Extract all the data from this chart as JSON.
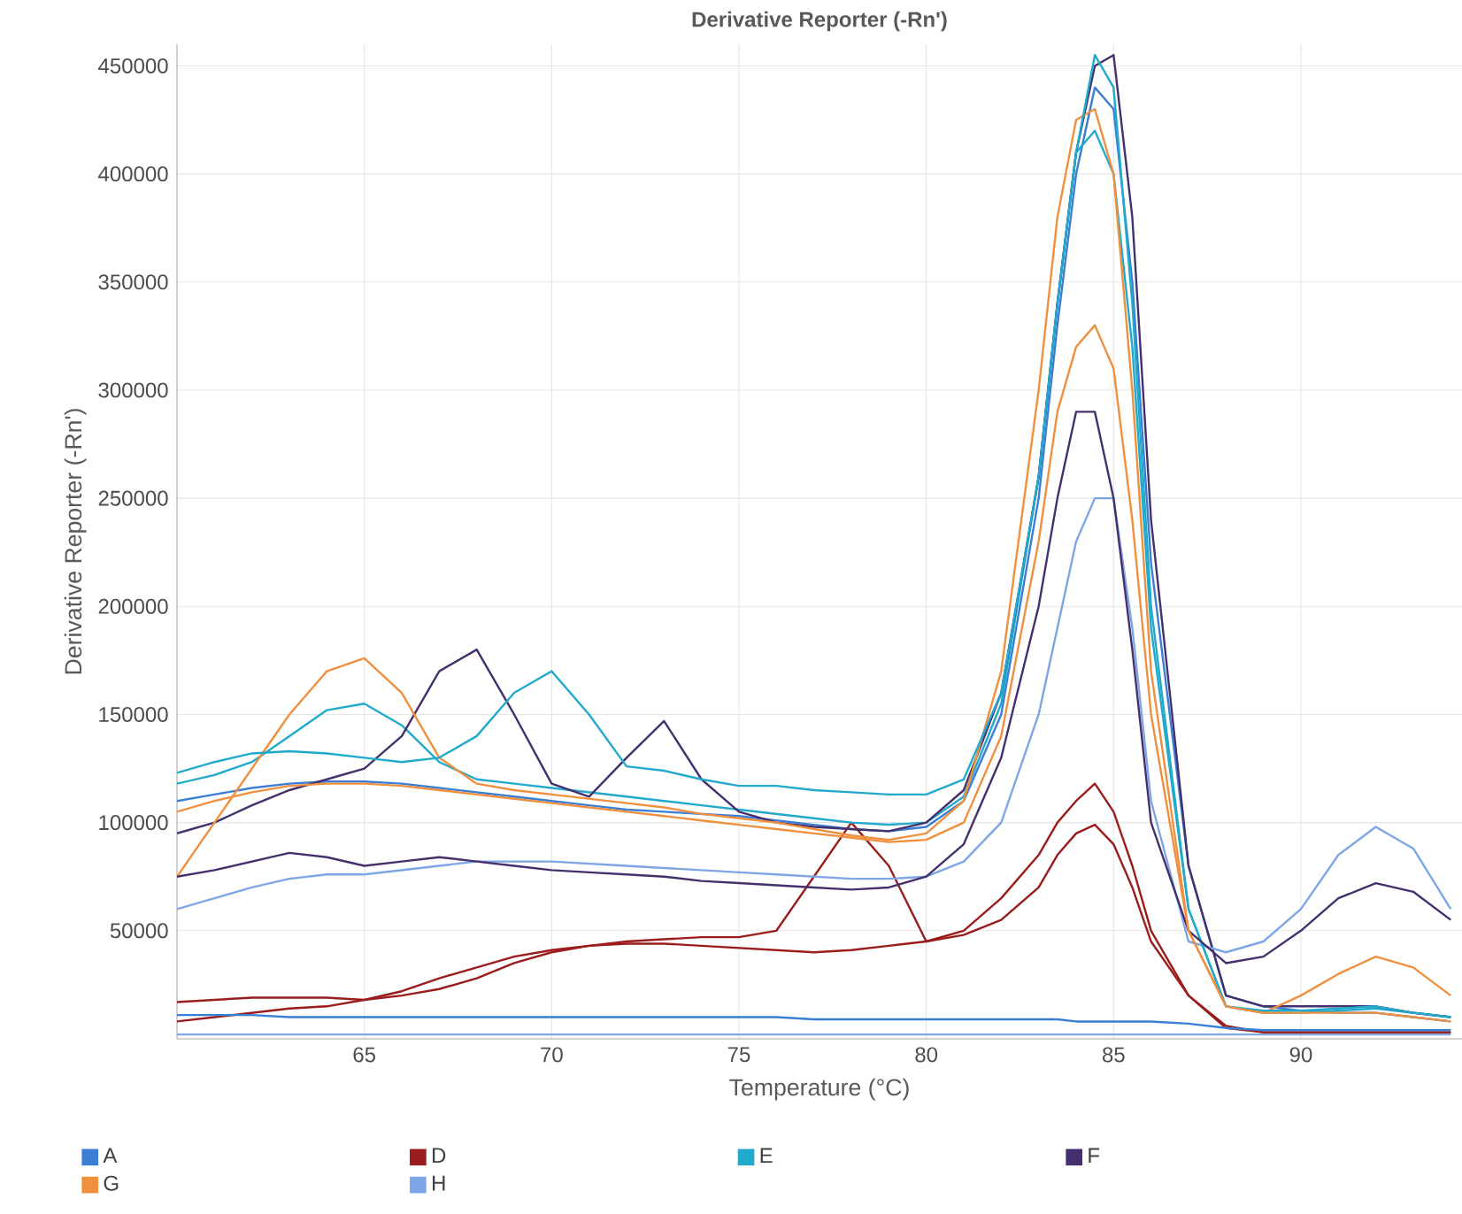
{
  "chart_data": {
    "type": "line",
    "title": "Derivative Reporter (-Rn')",
    "xlabel": "Temperature (°C)",
    "ylabel": "Derivative Reporter (-Rn')",
    "x": [
      60,
      61,
      62,
      63,
      64,
      65,
      66,
      67,
      68,
      69,
      70,
      71,
      72,
      73,
      74,
      75,
      76,
      77,
      78,
      79,
      80,
      81,
      82,
      83,
      83.5,
      84,
      84.5,
      85,
      85.5,
      86,
      87,
      88,
      89,
      90,
      91,
      92,
      93,
      94
    ],
    "xlim": [
      60,
      94.3
    ],
    "ylim": [
      0,
      460000
    ],
    "xticks": [
      65,
      70,
      75,
      80,
      85,
      90
    ],
    "yticks": [
      50000,
      100000,
      150000,
      200000,
      250000,
      300000,
      350000,
      400000,
      450000
    ],
    "grid": true,
    "legend": "bottom",
    "series": [
      {
        "name": "A",
        "color": "#3a7fd5",
        "values": [
          110000,
          113000,
          116000,
          118000,
          119000,
          119000,
          118000,
          116000,
          114000,
          112000,
          110000,
          108000,
          106000,
          105000,
          104000,
          103000,
          101000,
          99000,
          97000,
          96000,
          98000,
          110000,
          150000,
          250000,
          330000,
          400000,
          440000,
          430000,
          350000,
          220000,
          80000,
          20000,
          15000,
          13000,
          12000,
          12000,
          10000,
          8000
        ]
      },
      {
        "name": "D",
        "color": "#9b1c1c",
        "values": [
          17000,
          18000,
          19000,
          19000,
          19000,
          18000,
          20000,
          23000,
          28000,
          35000,
          40000,
          43000,
          45000,
          46000,
          47000,
          47000,
          50000,
          75000,
          100000,
          80000,
          45000,
          50000,
          65000,
          85000,
          100000,
          110000,
          118000,
          105000,
          80000,
          50000,
          20000,
          5000,
          3000,
          3000,
          3000,
          3000,
          3000,
          3000
        ]
      },
      {
        "name": "E",
        "color": "#22aacc",
        "values": [
          118000,
          122000,
          128000,
          140000,
          152000,
          155000,
          145000,
          128000,
          120000,
          118000,
          116000,
          114000,
          112000,
          110000,
          108000,
          106000,
          104000,
          102000,
          100000,
          99000,
          100000,
          112000,
          155000,
          260000,
          340000,
          410000,
          420000,
          400000,
          320000,
          190000,
          60000,
          15000,
          12000,
          12000,
          13000,
          14000,
          12000,
          10000
        ]
      },
      {
        "name": "F",
        "color": "#45306e",
        "values": [
          95000,
          100000,
          108000,
          115000,
          120000,
          125000,
          140000,
          170000,
          180000,
          150000,
          118000,
          112000,
          130000,
          147000,
          120000,
          105000,
          100000,
          98000,
          97000,
          96000,
          100000,
          115000,
          160000,
          260000,
          340000,
          410000,
          450000,
          455000,
          380000,
          240000,
          80000,
          20000,
          15000,
          15000,
          15000,
          15000,
          12000,
          10000
        ]
      },
      {
        "name": "G",
        "color": "#f0903f",
        "values": [
          75000,
          100000,
          125000,
          150000,
          170000,
          176000,
          160000,
          130000,
          118000,
          115000,
          113000,
          111000,
          109000,
          107000,
          104000,
          102000,
          100000,
          97000,
          94000,
          92000,
          95000,
          110000,
          170000,
          300000,
          380000,
          425000,
          430000,
          400000,
          300000,
          170000,
          50000,
          15000,
          12000,
          20000,
          30000,
          38000,
          33000,
          20000
        ]
      },
      {
        "name": "H",
        "color": "#7ea6e6",
        "values": [
          60000,
          65000,
          70000,
          74000,
          76000,
          76000,
          78000,
          80000,
          82000,
          82000,
          82000,
          81000,
          80000,
          79000,
          78000,
          77000,
          76000,
          75000,
          74000,
          74000,
          75000,
          82000,
          100000,
          150000,
          190000,
          230000,
          250000,
          250000,
          190000,
          110000,
          45000,
          40000,
          45000,
          60000,
          85000,
          98000,
          88000,
          60000
        ]
      },
      {
        "color": "#22aacc",
        "values": [
          123000,
          128000,
          132000,
          133000,
          132000,
          130000,
          128000,
          130000,
          140000,
          160000,
          170000,
          150000,
          126000,
          124000,
          120000,
          117000,
          117000,
          115000,
          114000,
          113000,
          113000,
          120000,
          160000,
          260000,
          340000,
          410000,
          455000,
          440000,
          340000,
          200000,
          60000,
          15000,
          13000,
          13000,
          14000,
          15000,
          12000,
          10000
        ]
      },
      {
        "color": "#9b1c1c",
        "values": [
          8000,
          10000,
          12000,
          14000,
          15000,
          18000,
          22000,
          28000,
          33000,
          38000,
          41000,
          43000,
          44000,
          44000,
          43000,
          42000,
          41000,
          40000,
          41000,
          43000,
          45000,
          48000,
          55000,
          70000,
          85000,
          95000,
          99000,
          90000,
          70000,
          45000,
          20000,
          6000,
          3000,
          3000,
          3000,
          3000,
          3000,
          3000
        ]
      },
      {
        "color": "#45306e",
        "values": [
          75000,
          78000,
          82000,
          86000,
          84000,
          80000,
          82000,
          84000,
          82000,
          80000,
          78000,
          77000,
          76000,
          75000,
          73000,
          72000,
          71000,
          70000,
          69000,
          70000,
          75000,
          90000,
          130000,
          200000,
          250000,
          290000,
          290000,
          250000,
          180000,
          100000,
          50000,
          35000,
          38000,
          50000,
          65000,
          72000,
          68000,
          55000
        ]
      },
      {
        "color": "#f0903f",
        "values": [
          105000,
          110000,
          114000,
          117000,
          118000,
          118000,
          117000,
          115000,
          113000,
          111000,
          109000,
          107000,
          105000,
          103000,
          101000,
          99000,
          97000,
          95000,
          93000,
          91000,
          92000,
          100000,
          140000,
          230000,
          290000,
          320000,
          330000,
          310000,
          240000,
          150000,
          50000,
          15000,
          12000,
          12000,
          12000,
          12000,
          10000,
          8000
        ]
      },
      {
        "color": "#3a7fd5",
        "values": [
          11000,
          11000,
          11000,
          10000,
          10000,
          10000,
          10000,
          10000,
          10000,
          10000,
          10000,
          10000,
          10000,
          10000,
          10000,
          10000,
          10000,
          9000,
          9000,
          9000,
          9000,
          9000,
          9000,
          9000,
          9000,
          8000,
          8000,
          8000,
          8000,
          8000,
          7000,
          5000,
          4000,
          4000,
          4000,
          4000,
          4000,
          4000
        ]
      },
      {
        "color": "#7ea6e6",
        "values": [
          2000,
          2000,
          2000,
          2000,
          2000,
          2000,
          2000,
          2000,
          2000,
          2000,
          2000,
          2000,
          2000,
          2000,
          2000,
          2000,
          2000,
          2000,
          2000,
          2000,
          2000,
          2000,
          2000,
          2000,
          2000,
          2000,
          2000,
          2000,
          2000,
          2000,
          2000,
          2000,
          2000,
          2000,
          2000,
          2000,
          2000,
          2000
        ]
      }
    ]
  }
}
